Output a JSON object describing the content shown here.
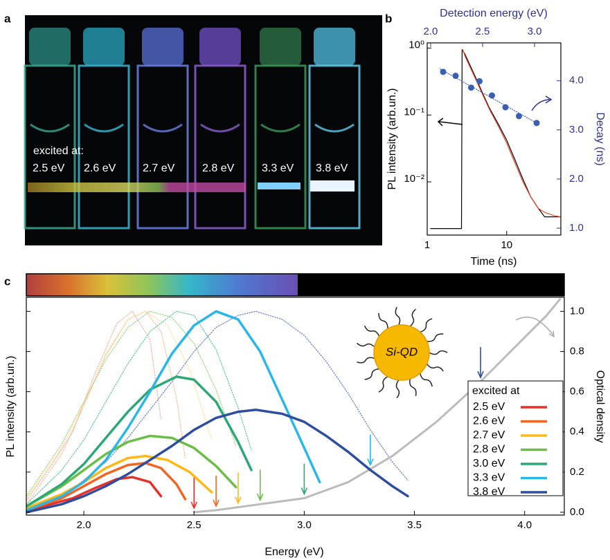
{
  "panel_labels": [
    "a",
    "b",
    "c"
  ],
  "photo": {
    "caption": "excited at:",
    "labels": [
      "2.5 eV",
      "2.6 eV",
      "2.7 eV",
      "2.8 eV",
      "3.3 eV",
      "3.8 eV"
    ]
  },
  "chart_data": [
    {
      "type": "line",
      "xlog": true,
      "ylog": true,
      "xlim": [
        1,
        48
      ],
      "ylim": [
        0.0016,
        1.2
      ],
      "xticks": [
        1,
        10
      ],
      "yticks": [
        {
          "value": 0.01,
          "label": "10⁻²"
        },
        {
          "value": 0.1,
          "label": "10⁻¹"
        },
        {
          "value": 1,
          "label": "10⁰"
        }
      ],
      "xlabel": "Time (ns)",
      "ylabel": "PL intensity (arb.un.)",
      "x2label": "Detection energy (eV)",
      "x2lim": [
        1.967,
        3.253
      ],
      "x2ticks": [
        {
          "value": 2,
          "label": "2.0"
        },
        2.5,
        {
          "value": 3,
          "label": "3.0"
        }
      ],
      "y2label": "Decay (ns)",
      "y2lim": [
        0.86,
        4.77
      ],
      "y2ticks": [
        {
          "value": 1,
          "label": "1.0"
        },
        {
          "value": 2,
          "label": "2.0"
        },
        {
          "value": 3,
          "label": "3.0"
        },
        {
          "value": 4,
          "label": "4.0"
        }
      ],
      "series": [
        {
          "color": "#000000",
          "x": [
            1.1,
            2.7,
            2.75,
            3,
            4,
            5,
            6,
            8,
            10,
            13,
            16,
            20,
            25,
            30,
            40,
            48
          ],
          "values": [
            0.002,
            0.002,
            0.95,
            0.8,
            0.38,
            0.21,
            0.13,
            0.07,
            0.042,
            0.02,
            0.011,
            0.006,
            0.004,
            0.003,
            0.003,
            0.003
          ]
        },
        {
          "color": "#e8442a",
          "x": [
            2.8,
            3,
            4,
            5,
            6,
            8,
            10,
            13,
            16,
            20,
            25,
            30,
            40,
            48
          ],
          "values": [
            0.95,
            0.75,
            0.36,
            0.2,
            0.125,
            0.065,
            0.038,
            0.018,
            0.01,
            0.006,
            0.004,
            0.0035,
            0.0031,
            0.003
          ]
        },
        {
          "color": "#3a5fb0",
          "axis": "y2",
          "xaxis": "x2",
          "style": "markers",
          "x": [
            2.12,
            2.24,
            2.39,
            2.47,
            2.59,
            2.72,
            2.85,
            3.02
          ],
          "values": [
            4.18,
            4.1,
            3.86,
            3.99,
            3.7,
            3.46,
            3.28,
            3.14
          ]
        },
        {
          "color": "#3a5fb0",
          "axis": "y2",
          "xaxis": "x2",
          "style": "dotted",
          "x": [
            2.09,
            3.02
          ],
          "values": [
            4.24,
            3.14
          ]
        }
      ]
    },
    {
      "type": "line",
      "xlim": [
        1.739,
        4.18
      ],
      "ylim": [
        -0.014,
        1.07
      ],
      "xticks": [
        {
          "value": 2,
          "label": "2.0"
        },
        2.5,
        {
          "value": 3,
          "label": "3.0"
        },
        3.5,
        {
          "value": 4,
          "label": "4.0"
        }
      ],
      "yticks": [
        {
          "value": 0,
          "label": "0.0"
        },
        0.2,
        0.4,
        0.6,
        0.8,
        {
          "value": 1,
          "label": "1.0"
        }
      ],
      "xlabel": "Energy (eV)",
      "ylabel": "PL intensity (arb.un.)",
      "y2label": "Optical density",
      "legend_title": "excited at",
      "annotation": "Si-QD",
      "arrows": [
        2.5,
        2.6,
        2.7,
        2.8,
        3.0,
        3.3,
        3.8
      ],
      "series": [
        {
          "style": "dotted",
          "color": "#f5a89a",
          "x": [
            1.74,
            1.85,
            1.95,
            2.05,
            2.15,
            2.22,
            2.3,
            2.35
          ],
          "values": [
            0.06,
            0.23,
            0.4,
            0.69,
            0.94,
            1.0,
            0.86,
            0.46
          ]
        },
        {
          "style": "dotted",
          "color": "#f8b58e",
          "x": [
            1.74,
            1.9,
            2.0,
            2.1,
            2.2,
            2.28,
            2.35,
            2.42,
            2.46
          ],
          "values": [
            0.04,
            0.29,
            0.53,
            0.78,
            0.96,
            1.0,
            0.9,
            0.57,
            0.27
          ]
        },
        {
          "style": "dotted",
          "color": "#fdd98a",
          "x": [
            1.74,
            1.9,
            2.0,
            2.1,
            2.2,
            2.28,
            2.38,
            2.48,
            2.58
          ],
          "values": [
            0.07,
            0.32,
            0.54,
            0.79,
            0.96,
            1.0,
            0.93,
            0.71,
            0.36
          ]
        },
        {
          "style": "dotted",
          "color": "#8fce6e",
          "x": [
            1.74,
            1.9,
            2.0,
            2.1,
            2.2,
            2.3,
            2.4,
            2.5,
            2.6,
            2.69
          ],
          "values": [
            0.08,
            0.34,
            0.55,
            0.76,
            0.92,
            1.0,
            0.97,
            0.84,
            0.61,
            0.33
          ]
        },
        {
          "style": "dotted",
          "color": "#4fbf8a",
          "x": [
            1.74,
            1.9,
            2.0,
            2.1,
            2.2,
            2.3,
            2.42,
            2.5,
            2.6,
            2.7,
            2.76
          ],
          "values": [
            0.04,
            0.21,
            0.36,
            0.55,
            0.74,
            0.9,
            1.0,
            0.98,
            0.81,
            0.52,
            0.31
          ]
        },
        {
          "style": "dotted",
          "color": "#5b6fc0",
          "x": [
            1.74,
            1.9,
            2.0,
            2.1,
            2.2,
            2.3,
            2.4,
            2.5,
            2.6,
            2.7,
            2.78,
            2.9,
            3.0,
            3.1,
            3.2,
            3.3,
            3.4,
            3.47
          ],
          "values": [
            0.0,
            0.08,
            0.16,
            0.25,
            0.37,
            0.51,
            0.65,
            0.8,
            0.92,
            0.98,
            1.0,
            0.96,
            0.88,
            0.75,
            0.59,
            0.41,
            0.25,
            0.16
          ]
        },
        {
          "style": "od",
          "color": "#bbbbbb",
          "x": [
            2.5,
            2.6,
            2.8,
            3.0,
            3.2,
            3.4,
            3.6,
            3.8,
            4.0,
            4.1,
            4.16
          ],
          "values": [
            0.0,
            0.01,
            0.04,
            0.07,
            0.15,
            0.28,
            0.45,
            0.65,
            0.87,
            0.98,
            1.06
          ]
        },
        {
          "name": "2.5 eV",
          "color": "#e8302a",
          "x": [
            1.74,
            1.85,
            1.95,
            2.05,
            2.15,
            2.22,
            2.3,
            2.35
          ],
          "values": [
            0.01,
            0.04,
            0.07,
            0.12,
            0.165,
            0.175,
            0.15,
            0.08
          ]
        },
        {
          "name": "2.6 eV",
          "color": "#f26522",
          "x": [
            1.74,
            1.9,
            2.0,
            2.1,
            2.2,
            2.28,
            2.35,
            2.42,
            2.46
          ],
          "values": [
            0.01,
            0.07,
            0.13,
            0.19,
            0.235,
            0.245,
            0.22,
            0.14,
            0.065
          ]
        },
        {
          "name": "2.7 eV",
          "color": "#fdb913",
          "x": [
            1.74,
            1.9,
            2.0,
            2.1,
            2.2,
            2.28,
            2.38,
            2.48,
            2.58
          ],
          "values": [
            0.02,
            0.09,
            0.15,
            0.22,
            0.27,
            0.28,
            0.26,
            0.2,
            0.1
          ]
        },
        {
          "name": "2.8 eV",
          "color": "#6abd45",
          "x": [
            1.74,
            1.9,
            2.0,
            2.1,
            2.2,
            2.3,
            2.4,
            2.5,
            2.6,
            2.69
          ],
          "values": [
            0.03,
            0.13,
            0.21,
            0.29,
            0.35,
            0.38,
            0.37,
            0.32,
            0.23,
            0.125
          ]
        },
        {
          "name": "3.0 eV",
          "color": "#2aa876",
          "x": [
            1.74,
            1.9,
            2.0,
            2.1,
            2.2,
            2.3,
            2.42,
            2.5,
            2.6,
            2.7,
            2.76
          ],
          "values": [
            0.03,
            0.14,
            0.24,
            0.37,
            0.5,
            0.61,
            0.675,
            0.66,
            0.55,
            0.35,
            0.21
          ]
        },
        {
          "name": "3.3 eV",
          "color": "#29b6e8",
          "x": [
            1.74,
            1.9,
            2.0,
            2.1,
            2.2,
            2.3,
            2.4,
            2.5,
            2.6,
            2.7,
            2.8,
            2.9,
            3.0,
            3.07
          ],
          "values": [
            0.01,
            0.08,
            0.15,
            0.26,
            0.42,
            0.6,
            0.79,
            0.93,
            1.0,
            0.96,
            0.8,
            0.56,
            0.32,
            0.15
          ]
        },
        {
          "name": "3.8 eV",
          "color": "#2e4d9e",
          "x": [
            1.74,
            1.9,
            2.0,
            2.1,
            2.2,
            2.3,
            2.4,
            2.5,
            2.6,
            2.7,
            2.78,
            2.9,
            3.0,
            3.1,
            3.2,
            3.3,
            3.4,
            3.47
          ],
          "values": [
            0.0,
            0.04,
            0.08,
            0.13,
            0.19,
            0.26,
            0.33,
            0.41,
            0.47,
            0.5,
            0.51,
            0.49,
            0.45,
            0.38,
            0.3,
            0.21,
            0.13,
            0.08
          ]
        }
      ]
    }
  ]
}
